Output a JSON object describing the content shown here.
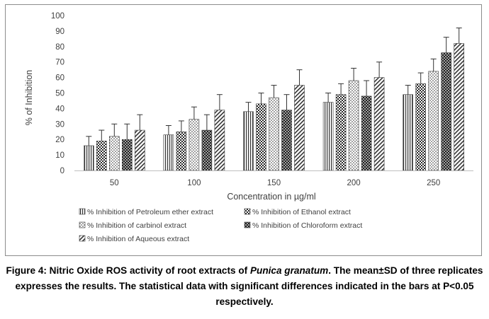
{
  "chart_data": {
    "type": "bar",
    "title": "",
    "xlabel": "Concentration in µg/ml",
    "ylabel": "% of Inhibition",
    "ylim": [
      0,
      100
    ],
    "yticks": [
      0,
      10,
      20,
      30,
      40,
      50,
      60,
      70,
      80,
      90,
      100
    ],
    "grid": false,
    "legend_position": "bottom",
    "error_bars": true,
    "categories": [
      "50",
      "100",
      "150",
      "200",
      "250"
    ],
    "series": [
      {
        "name": "% Inhibition of Petroleum ether extract",
        "pattern": "vertical-lines",
        "values": [
          16,
          23,
          38,
          44,
          49
        ],
        "errors": [
          6,
          6,
          6,
          6,
          6
        ]
      },
      {
        "name": "% Inhibition of Ethanol extract",
        "pattern": "checker",
        "values": [
          19,
          25,
          43,
          49,
          56
        ],
        "errors": [
          7,
          7,
          7,
          7,
          7
        ]
      },
      {
        "name": "% Inhibition of carbinol extract",
        "pattern": "dots",
        "values": [
          22,
          33,
          47,
          58,
          64
        ],
        "errors": [
          8,
          8,
          8,
          8,
          8
        ]
      },
      {
        "name": "% Inhibition of Chloroform extract",
        "pattern": "dark-dots",
        "values": [
          20,
          26,
          39,
          48,
          76
        ],
        "errors": [
          10,
          10,
          10,
          10,
          10
        ]
      },
      {
        "name": "% Inhibition of Aqueous extract",
        "pattern": "diagonal",
        "values": [
          26,
          39,
          55,
          60,
          82
        ],
        "errors": [
          10,
          10,
          10,
          10,
          10
        ]
      }
    ]
  },
  "caption": {
    "prefix": "Figure 4: Nitric Oxide ROS activity of root extracts of ",
    "species": "Punica granatum",
    "suffix": ". The mean±SD of three replicates expresses the results. The statistical data with significant differences indicated in the bars at P<0.05 respectively."
  }
}
